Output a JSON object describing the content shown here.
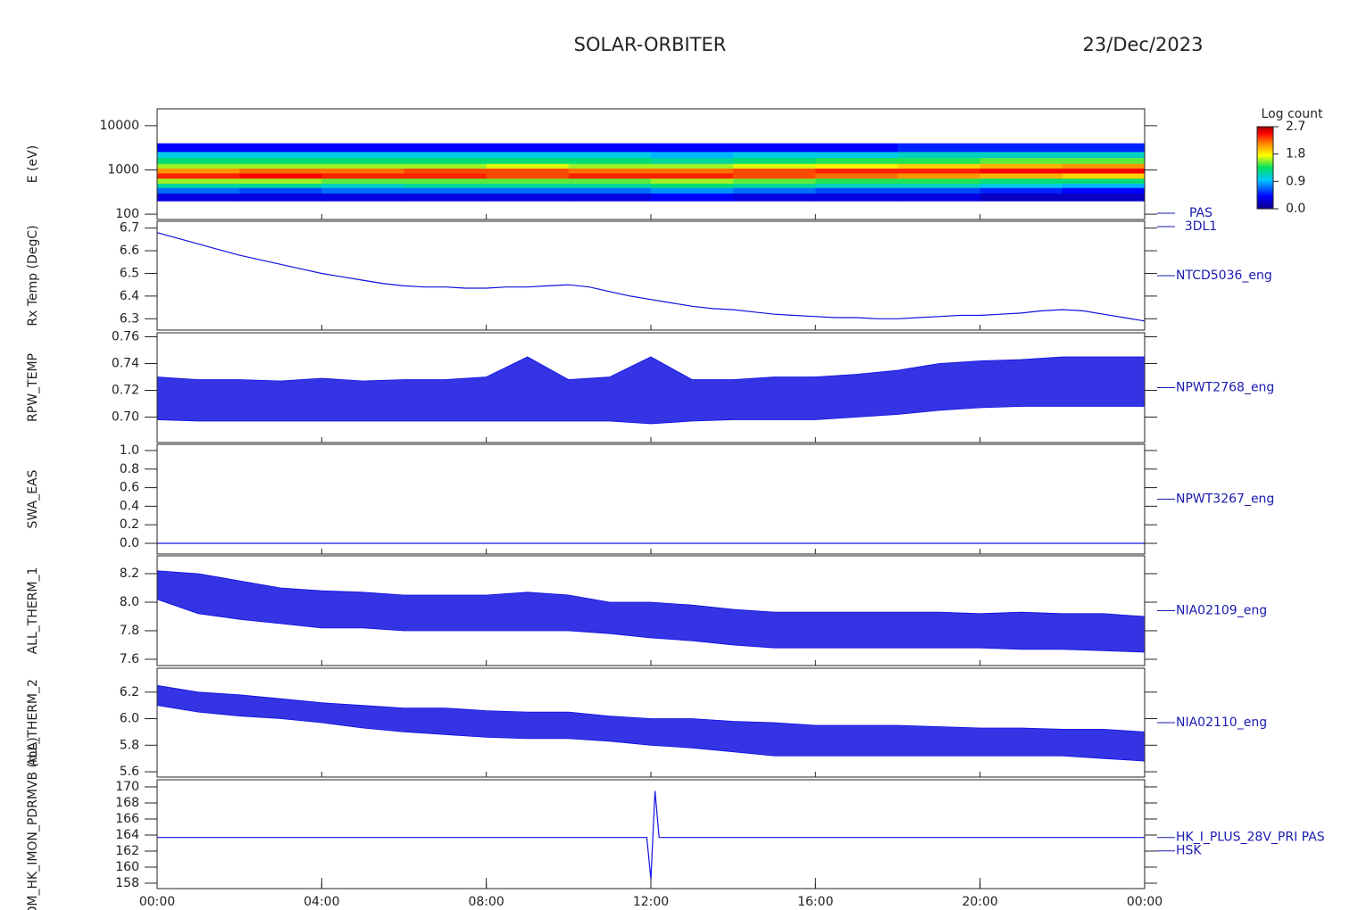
{
  "header": {
    "title": "SOLAR-ORBITER",
    "date": "23/Dec/2023"
  },
  "chart_data": [
    {
      "type": "heatmap",
      "ylabel": "E (eV)",
      "label": [
        "PAS",
        "3DL1"
      ],
      "ylog": true,
      "ylim": [
        76,
        24000
      ],
      "yticks": [
        100,
        1000,
        10000
      ],
      "xlim": [
        0,
        24
      ],
      "x_edges": [
        0,
        2,
        4,
        6,
        8,
        10,
        12,
        14,
        16,
        18,
        20,
        22,
        24
      ],
      "y_edges": [
        200,
        300,
        400,
        500,
        650,
        850,
        1100,
        1400,
        1900,
        2600,
        4000
      ],
      "z": [
        [
          0.3,
          0.7,
          1.2,
          1.6,
          2.4,
          2.1,
          1.6,
          1.3,
          1.0,
          0.4
        ],
        [
          0.3,
          0.6,
          1.2,
          1.6,
          2.5,
          2.2,
          1.6,
          1.3,
          1.0,
          0.4
        ],
        [
          0.3,
          0.7,
          1.1,
          1.5,
          2.4,
          2.2,
          1.6,
          1.3,
          1.0,
          0.4
        ],
        [
          0.3,
          0.7,
          1.2,
          1.5,
          2.4,
          2.3,
          1.6,
          1.3,
          1.0,
          0.4
        ],
        [
          0.3,
          0.7,
          1.2,
          1.5,
          2.3,
          2.3,
          1.7,
          1.3,
          1.0,
          0.4
        ],
        [
          0.3,
          0.7,
          1.2,
          1.5,
          2.4,
          2.2,
          1.6,
          1.3,
          1.0,
          0.4
        ],
        [
          0.4,
          0.8,
          1.3,
          1.6,
          2.4,
          2.2,
          1.6,
          1.2,
          0.9,
          0.4
        ],
        [
          0.3,
          0.7,
          1.2,
          1.5,
          2.3,
          2.3,
          1.7,
          1.3,
          1.0,
          0.4
        ],
        [
          0.3,
          0.6,
          1.1,
          1.4,
          2.2,
          2.4,
          1.8,
          1.4,
          1.0,
          0.4
        ],
        [
          0.3,
          0.6,
          1.1,
          1.4,
          2.1,
          2.4,
          1.9,
          1.4,
          1.1,
          0.5
        ],
        [
          0.2,
          0.5,
          1.0,
          1.3,
          2.0,
          2.5,
          2.0,
          1.5,
          1.1,
          0.5
        ],
        [
          0.2,
          0.4,
          0.9,
          1.3,
          1.9,
          2.5,
          2.1,
          1.5,
          1.1,
          0.5
        ]
      ],
      "colorbar": {
        "label": "Log count",
        "clim": [
          0,
          2.7
        ],
        "ticks": [
          {
            "value": 0,
            "label": "0.0"
          },
          0.9,
          1.8,
          2.7
        ]
      }
    },
    {
      "type": "line",
      "ylabel": "Rx Temp (DegC)",
      "label": [
        "NTCD5036_eng"
      ],
      "color": "#1010e0",
      "ylim": [
        6.25,
        6.73
      ],
      "yticks": [
        6.3,
        6.4,
        6.5,
        6.6,
        6.7
      ],
      "xlim": [
        0,
        24
      ],
      "x": [
        0,
        0.5,
        1,
        1.5,
        2,
        2.5,
        3,
        3.5,
        4,
        4.5,
        5,
        5.5,
        6,
        6.5,
        7,
        7.5,
        8,
        8.5,
        9,
        9.5,
        10,
        10.5,
        11,
        11.5,
        12,
        12.5,
        13,
        13.5,
        14,
        14.5,
        15,
        15.5,
        16,
        16.5,
        17,
        17.5,
        18,
        18.5,
        19,
        19.5,
        20,
        20.5,
        21,
        21.5,
        22,
        22.5,
        23,
        23.5,
        24
      ],
      "values": [
        6.68,
        6.655,
        6.63,
        6.605,
        6.58,
        6.56,
        6.54,
        6.52,
        6.5,
        6.485,
        6.47,
        6.455,
        6.445,
        6.44,
        6.44,
        6.435,
        6.435,
        6.44,
        6.44,
        6.445,
        6.45,
        6.44,
        6.42,
        6.4,
        6.385,
        6.37,
        6.355,
        6.345,
        6.34,
        6.33,
        6.32,
        6.315,
        6.31,
        6.305,
        6.305,
        6.3,
        6.3,
        6.305,
        6.31,
        6.315,
        6.315,
        6.32,
        6.325,
        6.335,
        6.34,
        6.335,
        6.32,
        6.305,
        6.29
      ]
    },
    {
      "type": "band",
      "ylabel": "RPW_TEMP",
      "label": [
        "NPWT2768_eng"
      ],
      "color": "#1010e0",
      "ylim": [
        0.681,
        0.763
      ],
      "yticks": [
        {
          "value": 0.7,
          "label": "0.70"
        },
        0.72,
        0.74,
        0.76
      ],
      "xlim": [
        0,
        24
      ],
      "x": [
        0,
        1,
        2,
        3,
        4,
        5,
        6,
        7,
        8,
        9,
        10,
        11,
        12,
        13,
        14,
        15,
        16,
        17,
        18,
        19,
        20,
        21,
        22,
        23,
        24
      ],
      "high": [
        0.73,
        0.728,
        0.728,
        0.727,
        0.729,
        0.727,
        0.728,
        0.728,
        0.73,
        0.745,
        0.728,
        0.73,
        0.745,
        0.728,
        0.728,
        0.73,
        0.73,
        0.732,
        0.735,
        0.74,
        0.742,
        0.743,
        0.745,
        0.745,
        0.745
      ],
      "low": [
        0.698,
        0.697,
        0.697,
        0.697,
        0.697,
        0.697,
        0.697,
        0.697,
        0.697,
        0.697,
        0.697,
        0.697,
        0.695,
        0.697,
        0.698,
        0.698,
        0.698,
        0.7,
        0.702,
        0.705,
        0.707,
        0.708,
        0.708,
        0.708,
        0.708
      ]
    },
    {
      "type": "line",
      "ylabel": "SWA_EAS",
      "label": [
        "NPWT3267_eng"
      ],
      "color": "#1010e0",
      "ylim": [
        -0.115,
        1.067
      ],
      "yticks": [
        {
          "value": 0,
          "label": "0.0"
        },
        0.2,
        0.4,
        0.6,
        0.8,
        {
          "value": 1,
          "label": "1.0"
        }
      ],
      "xlim": [
        0,
        24
      ],
      "x": [
        0,
        1,
        2,
        3,
        4,
        5,
        6,
        7,
        8,
        9,
        10,
        11,
        12,
        13,
        14,
        15,
        16,
        17,
        18,
        19,
        20,
        21,
        22,
        23,
        24
      ],
      "values": [
        0,
        0,
        0,
        0,
        0,
        0,
        0,
        0,
        0,
        0,
        0,
        0,
        0,
        0,
        0,
        0,
        0,
        0,
        0,
        0,
        0,
        0,
        0,
        0,
        0
      ]
    },
    {
      "type": "band",
      "ylabel": "ALL_THERM_1",
      "label": [
        "NIA02109_eng"
      ],
      "color": "#1010e0",
      "ylim": [
        7.556,
        8.325
      ],
      "yticks": [
        7.6,
        7.8,
        {
          "value": 8,
          "label": "8.0"
        },
        8.2
      ],
      "xlim": [
        0,
        24
      ],
      "x": [
        0,
        1,
        2,
        3,
        4,
        5,
        6,
        7,
        8,
        9,
        10,
        11,
        12,
        13,
        14,
        15,
        16,
        17,
        18,
        19,
        20,
        21,
        22,
        23,
        24
      ],
      "high": [
        8.22,
        8.2,
        8.15,
        8.1,
        8.08,
        8.07,
        8.05,
        8.05,
        8.05,
        8.07,
        8.05,
        8.0,
        8.0,
        7.98,
        7.95,
        7.93,
        7.93,
        7.93,
        7.93,
        7.93,
        7.92,
        7.93,
        7.92,
        7.92,
        7.9
      ],
      "low": [
        8.02,
        7.92,
        7.88,
        7.85,
        7.82,
        7.82,
        7.8,
        7.8,
        7.8,
        7.8,
        7.8,
        7.78,
        7.75,
        7.73,
        7.7,
        7.68,
        7.68,
        7.68,
        7.68,
        7.68,
        7.68,
        7.67,
        7.67,
        7.66,
        7.65
      ]
    },
    {
      "type": "band",
      "ylabel": "ALL_THERM_2",
      "label": [
        "NIA02110_eng"
      ],
      "color": "#1010e0",
      "ylim": [
        5.56,
        6.38
      ],
      "yticks": [
        5.6,
        5.8,
        {
          "value": 6,
          "label": "6.0"
        },
        6.2
      ],
      "xlim": [
        0,
        24
      ],
      "x": [
        0,
        1,
        2,
        3,
        4,
        5,
        6,
        7,
        8,
        9,
        10,
        11,
        12,
        13,
        14,
        15,
        16,
        17,
        18,
        19,
        20,
        21,
        22,
        23,
        24
      ],
      "high": [
        6.25,
        6.2,
        6.18,
        6.15,
        6.12,
        6.1,
        6.08,
        6.08,
        6.06,
        6.05,
        6.05,
        6.02,
        6.0,
        6.0,
        5.98,
        5.97,
        5.95,
        5.95,
        5.95,
        5.94,
        5.93,
        5.93,
        5.92,
        5.92,
        5.9
      ],
      "low": [
        6.1,
        6.05,
        6.02,
        6.0,
        5.97,
        5.93,
        5.9,
        5.88,
        5.86,
        5.85,
        5.85,
        5.83,
        5.8,
        5.78,
        5.75,
        5.72,
        5.72,
        5.72,
        5.72,
        5.72,
        5.72,
        5.72,
        5.72,
        5.7,
        5.68
      ]
    },
    {
      "type": "line",
      "ylabel": "PSDM_HK_IMON_PDRMVB (mA)",
      "label": [
        "HK_I_PLUS_28V_PRI PAS",
        "HSK"
      ],
      "color": "#1010e0",
      "ylim": [
        157.33,
        170.89
      ],
      "yticks": [
        158,
        160,
        162,
        164,
        166,
        168,
        170
      ],
      "xlim": [
        0,
        24
      ],
      "x": [
        0,
        1,
        2,
        3,
        4,
        5,
        6,
        7,
        8,
        9,
        10,
        11,
        11.9,
        12,
        12.1,
        12.2,
        13,
        14,
        15,
        16,
        17,
        18,
        19,
        20,
        21,
        22,
        23,
        24
      ],
      "values": [
        163.7,
        163.7,
        163.7,
        163.7,
        163.7,
        163.7,
        163.7,
        163.7,
        163.7,
        163.7,
        163.7,
        163.7,
        163.7,
        158.5,
        169.5,
        163.7,
        163.7,
        163.7,
        163.7,
        163.7,
        163.7,
        163.7,
        163.7,
        163.7,
        163.7,
        163.7,
        163.7,
        163.7
      ],
      "xticks": [
        {
          "value": 0,
          "label": "00:00"
        },
        {
          "value": 4,
          "label": "04:00"
        },
        {
          "value": 8,
          "label": "08:00"
        },
        {
          "value": 12,
          "label": "12:00"
        },
        {
          "value": 16,
          "label": "16:00"
        },
        {
          "value": 20,
          "label": "20:00"
        },
        {
          "value": 24,
          "label": "00:00"
        }
      ]
    }
  ]
}
